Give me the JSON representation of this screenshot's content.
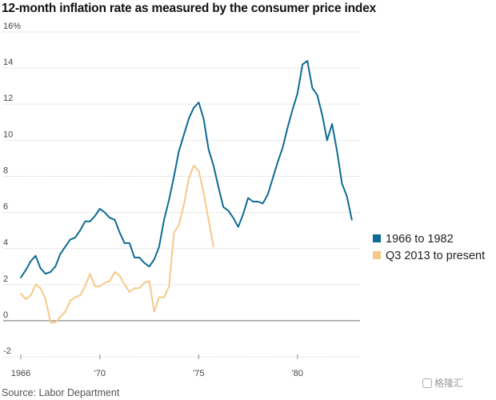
{
  "chart_data": {
    "type": "line",
    "title": "12-month inflation rate as measured by the consumer price index",
    "source": "Source: Labor Department",
    "xlabel": "",
    "ylabel": "",
    "xlim": [
      1966,
      1983
    ],
    "ylim": [
      -2,
      16
    ],
    "y_ticks": [
      {
        "value": 16,
        "label": "16%"
      },
      {
        "value": 14,
        "label": "14"
      },
      {
        "value": 12,
        "label": "12"
      },
      {
        "value": 10,
        "label": "10"
      },
      {
        "value": 8,
        "label": "8"
      },
      {
        "value": 6,
        "label": "6"
      },
      {
        "value": 4,
        "label": "4"
      },
      {
        "value": 2,
        "label": "2"
      },
      {
        "value": 0,
        "label": "0"
      },
      {
        "value": -2,
        "label": "-2"
      }
    ],
    "x_ticks": [
      {
        "value": 1966,
        "label": "1966"
      },
      {
        "value": 1970,
        "label": "'70"
      },
      {
        "value": 1975,
        "label": "'75"
      },
      {
        "value": 1980,
        "label": "'80"
      }
    ],
    "legend_position": "right",
    "series": [
      {
        "name": "1966 to 1982",
        "color": "#0e6b92",
        "x": [
          1966.0,
          1966.25,
          1966.5,
          1966.75,
          1967.0,
          1967.25,
          1967.5,
          1967.75,
          1968.0,
          1968.25,
          1968.5,
          1968.75,
          1969.0,
          1969.25,
          1969.5,
          1969.75,
          1970.0,
          1970.25,
          1970.5,
          1970.75,
          1971.0,
          1971.25,
          1971.5,
          1971.75,
          1972.0,
          1972.25,
          1972.5,
          1972.75,
          1973.0,
          1973.25,
          1973.5,
          1973.75,
          1974.0,
          1974.25,
          1974.5,
          1974.75,
          1975.0,
          1975.25,
          1975.5,
          1975.75,
          1976.0,
          1976.25,
          1976.5,
          1976.75,
          1977.0,
          1977.25,
          1977.5,
          1977.75,
          1978.0,
          1978.25,
          1978.5,
          1978.75,
          1979.0,
          1979.25,
          1979.5,
          1979.75,
          1980.0,
          1980.25,
          1980.5,
          1980.75,
          1981.0,
          1981.25,
          1981.5,
          1981.75,
          1982.0,
          1982.25,
          1982.5,
          1982.75
        ],
        "values": [
          2.4,
          2.8,
          3.3,
          3.6,
          2.9,
          2.6,
          2.7,
          3.0,
          3.7,
          4.1,
          4.5,
          4.6,
          5.0,
          5.5,
          5.5,
          5.8,
          6.2,
          6.0,
          5.7,
          5.6,
          4.9,
          4.3,
          4.3,
          3.5,
          3.5,
          3.2,
          3.0,
          3.4,
          4.1,
          5.6,
          6.7,
          8.0,
          9.4,
          10.3,
          11.2,
          11.8,
          12.1,
          11.2,
          9.5,
          8.6,
          7.4,
          6.3,
          6.1,
          5.7,
          5.2,
          5.9,
          6.8,
          6.6,
          6.6,
          6.5,
          7.0,
          7.9,
          8.8,
          9.6,
          10.7,
          11.7,
          12.6,
          14.2,
          14.4,
          12.9,
          12.5,
          11.4,
          10.0,
          10.9,
          9.4,
          7.6,
          6.9,
          5.6
        ]
      },
      {
        "name": "Q3 2013 to present",
        "color": "#f6c98a",
        "x": [
          1966.0,
          1966.25,
          1966.5,
          1966.75,
          1967.0,
          1967.25,
          1967.5,
          1967.75,
          1968.0,
          1968.25,
          1968.5,
          1968.75,
          1969.0,
          1969.25,
          1969.5,
          1969.75,
          1970.0,
          1970.25,
          1970.5,
          1970.75,
          1971.0,
          1971.25,
          1971.5,
          1971.75,
          1972.0,
          1972.25,
          1972.5,
          1972.75,
          1973.0,
          1973.25,
          1973.5,
          1973.75,
          1974.0,
          1974.25,
          1974.5,
          1974.75,
          1975.0,
          1975.25,
          1975.5,
          1975.75
        ],
        "values": [
          1.5,
          1.2,
          1.4,
          2.0,
          1.8,
          1.2,
          -0.1,
          -0.1,
          0.2,
          0.5,
          1.1,
          1.3,
          1.4,
          1.9,
          2.6,
          1.9,
          1.9,
          2.1,
          2.2,
          2.7,
          2.5,
          2.0,
          1.6,
          1.8,
          1.8,
          2.1,
          2.2,
          0.5,
          1.3,
          1.3,
          1.9,
          4.9,
          5.3,
          6.4,
          7.9,
          8.6,
          8.3,
          7.1,
          5.6,
          4.1
        ]
      }
    ]
  }
}
